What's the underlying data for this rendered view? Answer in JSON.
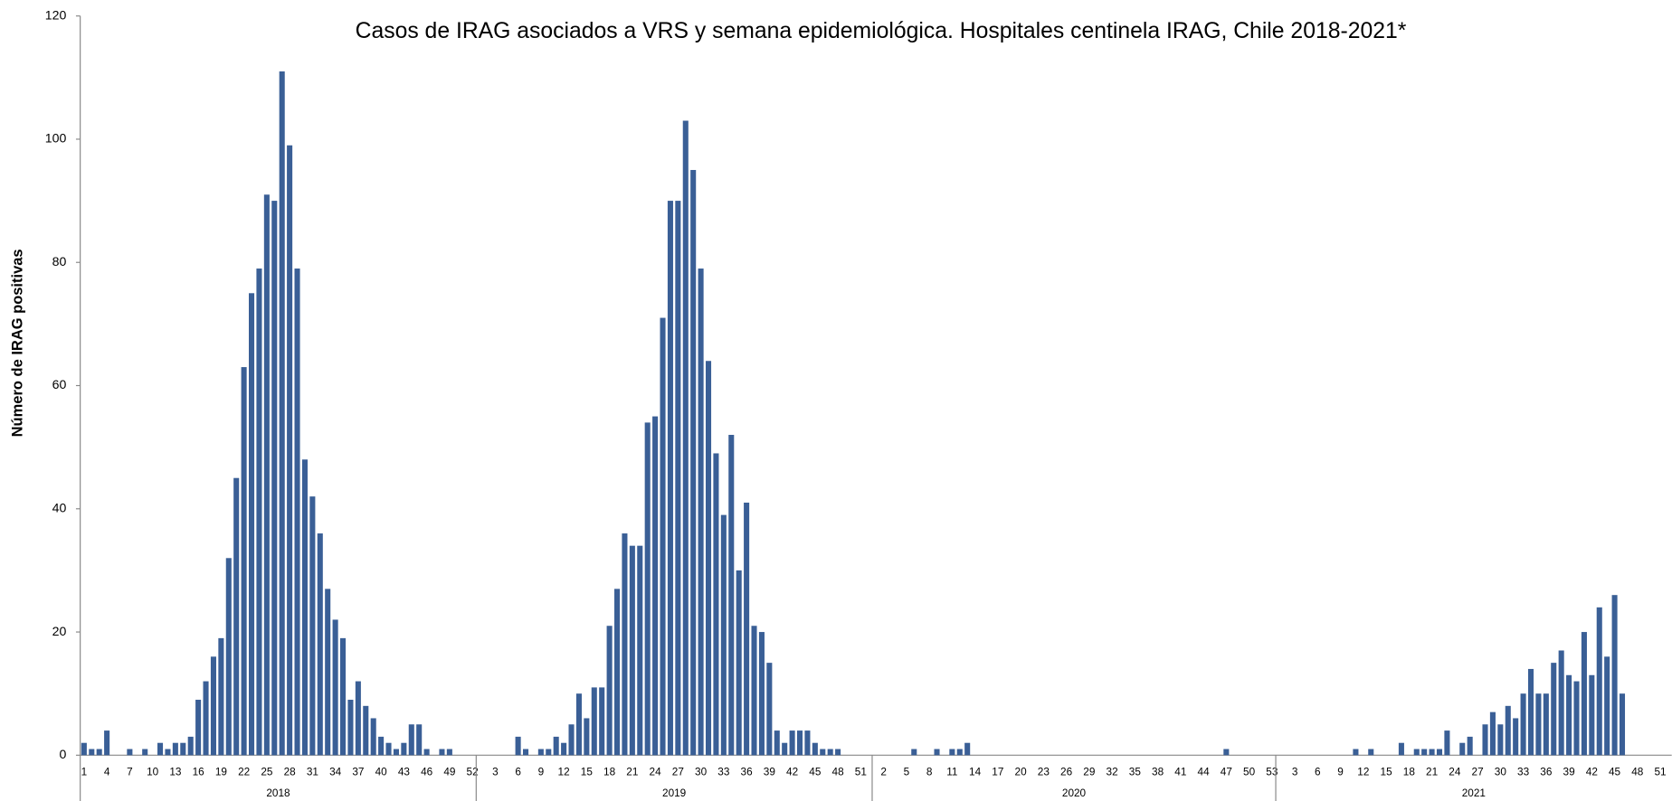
{
  "chart_data": {
    "type": "bar",
    "title": "Casos de IRAG asociados a  VRS y semana epidemiológica.  Hospitales centinela IRAG, Chile 2018-2021*",
    "y_label": "Número de IRAG positivas",
    "color": "#3a5f96",
    "ylim": [
      0,
      120
    ],
    "yticks": [
      0,
      20,
      40,
      60,
      80,
      100,
      120
    ],
    "grid": false,
    "groups": [
      {
        "name": "2018",
        "categories": [
          1,
          null,
          null,
          4,
          null,
          null,
          7,
          null,
          null,
          10,
          null,
          null,
          13,
          null,
          null,
          16,
          null,
          null,
          19,
          null,
          null,
          22,
          null,
          null,
          25,
          null,
          null,
          28,
          null,
          null,
          31,
          null,
          null,
          34,
          null,
          null,
          37,
          null,
          null,
          40,
          null,
          null,
          43,
          null,
          null,
          46,
          null,
          null,
          49,
          null,
          null,
          52
        ],
        "values": [
          2,
          1,
          1,
          4,
          0,
          0,
          1,
          0,
          1,
          0,
          2,
          1,
          2,
          2,
          3,
          9,
          12,
          16,
          19,
          32,
          45,
          63,
          75,
          79,
          91,
          90,
          111,
          99,
          79,
          48,
          42,
          36,
          27,
          22,
          19,
          9,
          12,
          8,
          6,
          3,
          2,
          1,
          2,
          5,
          5,
          1,
          0,
          1,
          1,
          0,
          0,
          0
        ]
      },
      {
        "name": "2019",
        "categories": [
          null,
          null,
          3,
          null,
          null,
          6,
          null,
          null,
          9,
          null,
          null,
          12,
          null,
          null,
          15,
          null,
          null,
          18,
          null,
          null,
          21,
          null,
          null,
          24,
          null,
          null,
          27,
          null,
          null,
          30,
          null,
          null,
          33,
          null,
          null,
          36,
          null,
          null,
          39,
          null,
          null,
          42,
          null,
          null,
          45,
          null,
          null,
          48,
          null,
          null,
          51,
          null
        ],
        "values": [
          0,
          0,
          0,
          0,
          0,
          3,
          1,
          0,
          1,
          1,
          3,
          2,
          5,
          10,
          6,
          11,
          11,
          21,
          27,
          36,
          34,
          34,
          54,
          55,
          71,
          90,
          90,
          103,
          95,
          79,
          64,
          49,
          39,
          52,
          30,
          41,
          21,
          20,
          15,
          4,
          2,
          4,
          4,
          4,
          2,
          1,
          1,
          1,
          0,
          0,
          0,
          0
        ]
      },
      {
        "name": "2020",
        "categories": [
          null,
          2,
          null,
          null,
          5,
          null,
          null,
          8,
          null,
          null,
          11,
          null,
          null,
          14,
          null,
          null,
          17,
          null,
          null,
          20,
          null,
          null,
          23,
          null,
          null,
          26,
          null,
          null,
          29,
          null,
          null,
          32,
          null,
          null,
          35,
          null,
          null,
          38,
          null,
          null,
          41,
          null,
          null,
          44,
          null,
          null,
          47,
          null,
          null,
          50,
          null,
          null,
          53
        ],
        "values": [
          0,
          0,
          0,
          0,
          0,
          1,
          0,
          0,
          1,
          0,
          1,
          1,
          2,
          0,
          0,
          0,
          0,
          0,
          0,
          0,
          0,
          0,
          0,
          0,
          0,
          0,
          0,
          0,
          0,
          0,
          0,
          0,
          0,
          0,
          0,
          0,
          0,
          0,
          0,
          0,
          0,
          0,
          0,
          0,
          0,
          0,
          1,
          0,
          0,
          0,
          0,
          0,
          0
        ]
      },
      {
        "name": "2021",
        "categories": [
          null,
          null,
          3,
          null,
          null,
          6,
          null,
          null,
          9,
          null,
          null,
          12,
          null,
          null,
          15,
          null,
          null,
          18,
          null,
          null,
          21,
          null,
          null,
          24,
          null,
          null,
          27,
          null,
          null,
          30,
          null,
          null,
          33,
          null,
          null,
          36,
          null,
          null,
          39,
          null,
          null,
          42,
          null,
          null,
          45,
          null,
          null,
          48,
          null,
          null,
          51,
          null
        ],
        "values": [
          0,
          0,
          0,
          0,
          0,
          0,
          0,
          0,
          0,
          0,
          1,
          0,
          1,
          0,
          0,
          0,
          2,
          0,
          1,
          1,
          1,
          1,
          4,
          0,
          2,
          3,
          0,
          5,
          7,
          5,
          8,
          6,
          10,
          14,
          10,
          10,
          15,
          17,
          13,
          12,
          20,
          13,
          24,
          16,
          26,
          10,
          null,
          null,
          null,
          null,
          null,
          null
        ]
      }
    ]
  }
}
